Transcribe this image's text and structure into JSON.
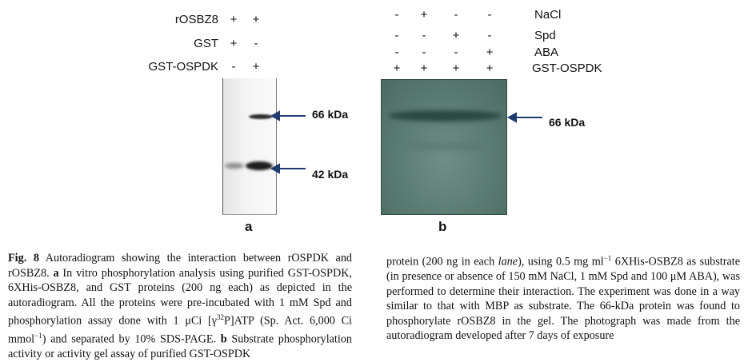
{
  "panel_a": {
    "rows": [
      {
        "label": "rOSBZ8",
        "lanes": [
          "+",
          "+"
        ]
      },
      {
        "label": "GST",
        "lanes": [
          "+",
          "-"
        ]
      },
      {
        "label": "GST-OSPDK",
        "lanes": [
          "-",
          "+"
        ]
      }
    ],
    "markers": [
      "66 kDa",
      "42 kDa"
    ],
    "letter": "a"
  },
  "panel_b": {
    "rows": [
      {
        "label": "NaCl",
        "lanes": [
          "-",
          "+",
          "-",
          "-"
        ]
      },
      {
        "label": "Spd",
        "lanes": [
          "-",
          "-",
          "+",
          "-"
        ]
      },
      {
        "label": "ABA",
        "lanes": [
          "-",
          "-",
          "-",
          "+"
        ]
      },
      {
        "label": "GST-OSPDK",
        "lanes": [
          "+",
          "+",
          "+",
          "+"
        ]
      }
    ],
    "marker": "66 kDa",
    "letter": "b"
  },
  "colors": {
    "gel_b": "#5f8077",
    "arrow": "#1f3a6e"
  },
  "caption": {
    "fig_label": "Fig. 8",
    "left_1": " Autoradiogram showing the interaction between rOSPDK and rOSBZ8. ",
    "a_label": "a",
    "left_2": " In vitro phosphorylation analysis using purified GST-OSPDK, 6XHis-OSBZ8, and GST proteins (200 ng each) as depicted in the autoradiogram. All the proteins were pre-incubated with 1 mM Spd and phosphorylation assay done with 1 μCi [γ",
    "left_sup_1": "32",
    "left_3": "P]ATP (Sp. Act. 6,000 Ci mmol",
    "left_sup_2": "−1",
    "left_4": ") and separated by 10% SDS-PAGE. ",
    "b_label": "b",
    "left_5": " Substrate phosphorylation activity or activity gel assay of purified GST-OSPDK",
    "right_1": "protein (200 ng in each ",
    "right_lane": "lane",
    "right_2": "), using 0.5 mg ml",
    "right_sup": "−1",
    "right_3": " 6XHis-OSBZ8 as substrate (in presence or absence of 150 mM NaCl, 1 mM Spd and 100 μM ABA), was performed to determine their interaction. The experiment was done in a way similar to that with MBP as substrate. The 66-kDa protein was found to phosphorylate rOSBZ8 in the gel. The photograph was made from the autoradiogram developed after 7 days of exposure"
  }
}
